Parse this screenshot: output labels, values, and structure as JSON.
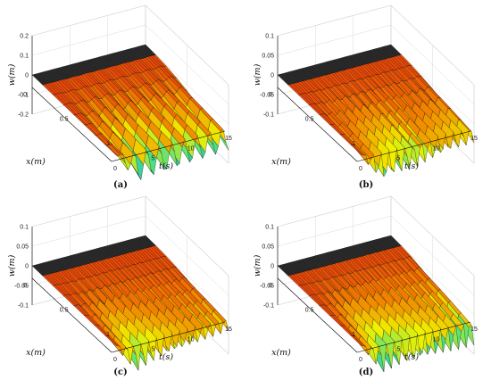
{
  "chart_data": [
    {
      "type": "surface",
      "caption": "(a)",
      "xlabel": "x(m)",
      "ylabel": "t(s)",
      "zlabel": "w(m)",
      "xlim": [
        0,
        1
      ],
      "ylim": [
        0,
        15
      ],
      "zlim": [
        -0.2,
        0.2
      ],
      "xticks": [
        "0",
        "0.5",
        "1"
      ],
      "yticks": [
        "0",
        "5",
        "10",
        "15"
      ],
      "zticks": [
        "0.2",
        "0.1",
        "0",
        "-0.1",
        "-0.2"
      ],
      "tip_amplitude": 0.18,
      "oscillation_cycles": 9,
      "decay": 0.02,
      "grid": true
    },
    {
      "type": "surface",
      "caption": "(b)",
      "xlabel": "x(m)",
      "ylabel": "t(s)",
      "zlabel": "w(m)",
      "xlim": [
        0,
        1
      ],
      "ylim": [
        0,
        15
      ],
      "zlim": [
        -0.1,
        0.1
      ],
      "xticks": [
        "0",
        "0.5",
        "1"
      ],
      "yticks": [
        "0",
        "5",
        "10",
        "15"
      ],
      "zticks": [
        "0.1",
        "0.05",
        "0",
        "-0.05",
        "-0.1"
      ],
      "tip_amplitude": 0.1,
      "oscillation_cycles": 14,
      "decay": 0.05,
      "grid": true
    },
    {
      "type": "surface",
      "caption": "(c)",
      "xlabel": "x(m)",
      "ylabel": "t(s)",
      "zlabel": "w(m)",
      "xlim": [
        0,
        1
      ],
      "ylim": [
        0,
        15
      ],
      "zlim": [
        -0.1,
        0.1
      ],
      "xticks": [
        "0",
        "0.5",
        "1"
      ],
      "yticks": [
        "0",
        "5",
        "10",
        "15"
      ],
      "zticks": [
        "0.1",
        "0.05",
        "0",
        "-0.05",
        "-0.1"
      ],
      "tip_amplitude": 0.1,
      "oscillation_cycles": 15,
      "decay": 0.06,
      "grid": true
    },
    {
      "type": "surface",
      "caption": "(d)",
      "xlabel": "x(m)",
      "ylabel": "t(s)",
      "zlabel": "w(m)",
      "xlim": [
        0,
        1
      ],
      "ylim": [
        0,
        15
      ],
      "zlim": [
        -0.1,
        0.1
      ],
      "xticks": [
        "0",
        "0.5",
        "1"
      ],
      "yticks": [
        "0",
        "5",
        "10",
        "15"
      ],
      "zticks": [
        "0.1",
        "0.05",
        "0",
        "-0.05",
        "-0.1"
      ],
      "tip_amplitude": 0.09,
      "oscillation_cycles": 15,
      "decay": 0.01,
      "grid": true
    }
  ],
  "colors": {
    "colormap": [
      "#1030c0",
      "#10b0e0",
      "#50e080",
      "#f0f000",
      "#f08000",
      "#e01010"
    ],
    "zero_plane": "#222222",
    "grid": "#d8d8d8",
    "mesh_edge": "#000000"
  }
}
